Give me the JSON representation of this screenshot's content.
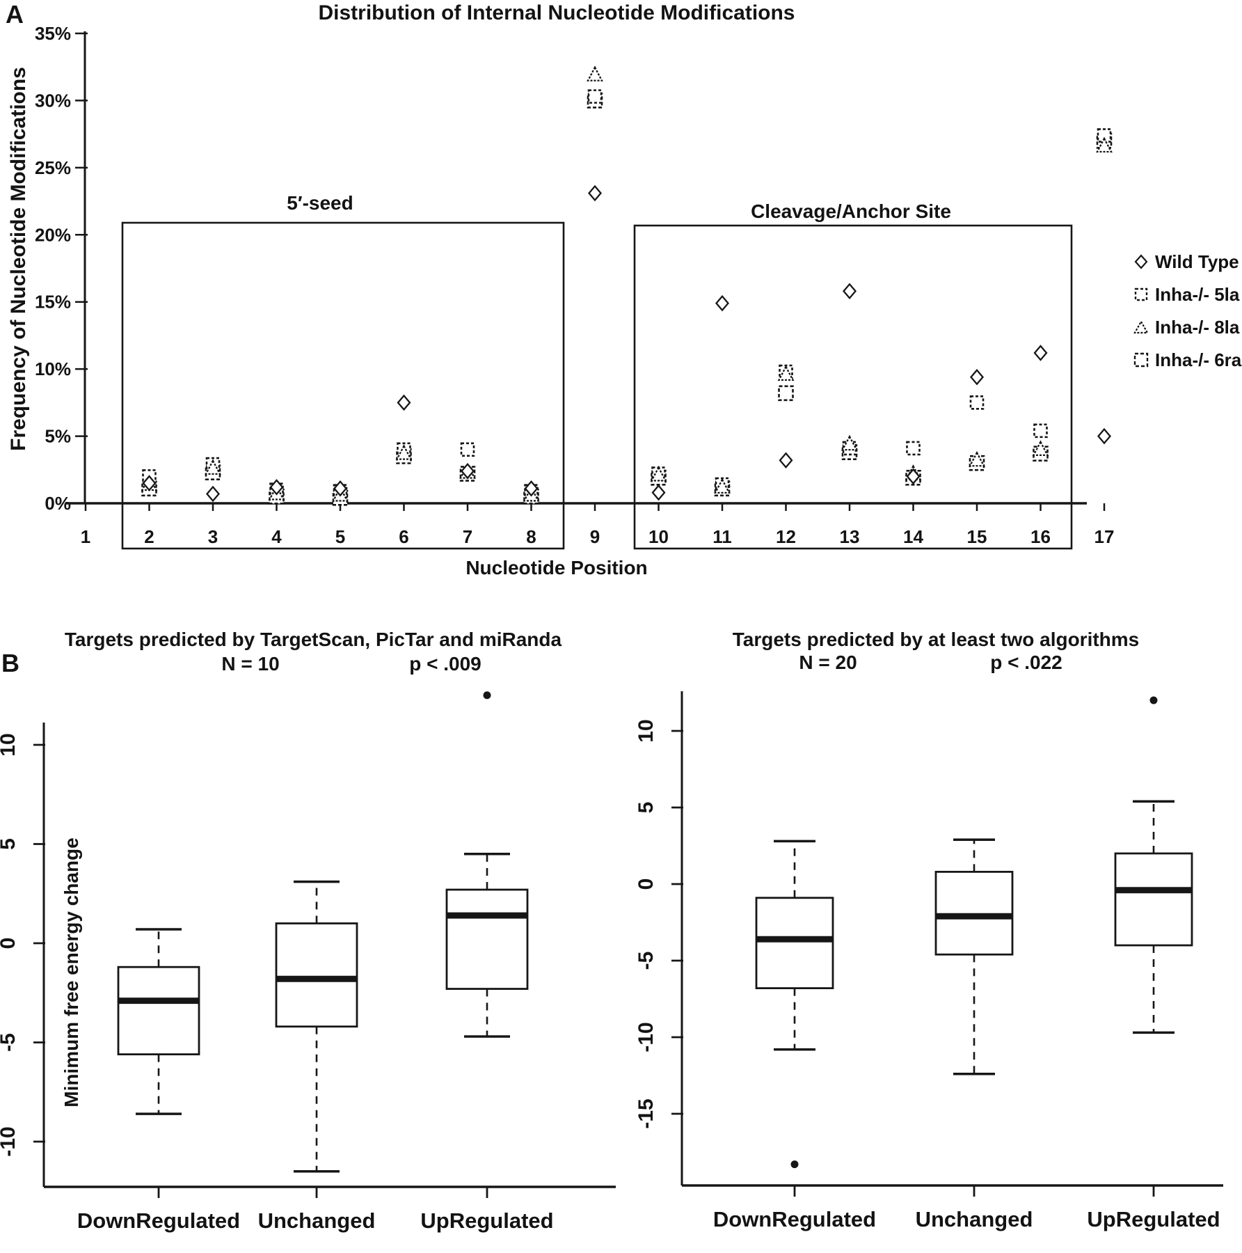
{
  "panels": {
    "a_label": "A",
    "b_label": "B"
  },
  "chart_data": [
    {
      "type": "scatter",
      "panel": "A",
      "title": "Distribution of Internal Nucleotide Modifications",
      "xlabel": "Nucleotide Position",
      "ylabel": "Frequency of Nucleotide Modifications",
      "x_ticks": [
        1,
        2,
        3,
        4,
        5,
        6,
        7,
        8,
        9,
        10,
        11,
        12,
        13,
        14,
        15,
        16,
        17
      ],
      "y_ticks_percent": [
        0,
        5,
        10,
        15,
        20,
        25,
        30,
        35
      ],
      "ylim": [
        0,
        35
      ],
      "grid": false,
      "legend_position": "right",
      "regions": [
        {
          "label": "5′-seed",
          "from": 2,
          "to": 8
        },
        {
          "label": "Cleavage/Anchor Site",
          "from": 10,
          "to": 16
        }
      ],
      "series": [
        {
          "name": "Wild Type",
          "marker": "diamond",
          "points": [
            [
              2,
              1.5
            ],
            [
              3,
              0.7
            ],
            [
              4,
              1.2
            ],
            [
              5,
              1.1
            ],
            [
              6,
              7.5
            ],
            [
              7,
              2.4
            ],
            [
              8,
              1.1
            ],
            [
              9,
              23.1
            ],
            [
              10,
              0.8
            ],
            [
              11,
              14.9
            ],
            [
              12,
              3.2
            ],
            [
              13,
              15.8
            ],
            [
              14,
              2.0
            ],
            [
              15,
              9.4
            ],
            [
              16,
              11.2
            ],
            [
              17,
              5.0
            ]
          ]
        },
        {
          "name": "Inha-/- 5la",
          "marker": "square-small",
          "points": [
            [
              2,
              2.0
            ],
            [
              3,
              2.9
            ],
            [
              4,
              1.0
            ],
            [
              5,
              0.9
            ],
            [
              6,
              4.0
            ],
            [
              7,
              4.0
            ],
            [
              8,
              0.9
            ],
            [
              9,
              30.3
            ],
            [
              10,
              2.2
            ],
            [
              11,
              1.4
            ],
            [
              12,
              9.8
            ],
            [
              13,
              4.1
            ],
            [
              14,
              4.1
            ],
            [
              15,
              7.5
            ],
            [
              16,
              5.4
            ],
            [
              17,
              27.4
            ]
          ]
        },
        {
          "name": "Inha-/- 8la",
          "marker": "triangle",
          "points": [
            [
              2,
              1.4
            ],
            [
              3,
              2.6
            ],
            [
              4,
              0.7
            ],
            [
              5,
              0.6
            ],
            [
              6,
              3.7
            ],
            [
              7,
              2.3
            ],
            [
              8,
              0.6
            ],
            [
              9,
              31.9
            ],
            [
              10,
              2.1
            ],
            [
              11,
              1.2
            ],
            [
              12,
              9.6
            ],
            [
              13,
              4.4
            ],
            [
              14,
              2.2
            ],
            [
              15,
              3.2
            ],
            [
              16,
              4.0
            ],
            [
              17,
              26.6
            ]
          ]
        },
        {
          "name": "Inha-/- 6ra",
          "marker": "square-large",
          "points": [
            [
              2,
              1.1
            ],
            [
              3,
              2.3
            ],
            [
              4,
              0.5
            ],
            [
              5,
              0.4
            ],
            [
              6,
              3.5
            ],
            [
              7,
              2.2
            ],
            [
              8,
              0.5
            ],
            [
              9,
              30.0
            ],
            [
              10,
              1.9
            ],
            [
              11,
              1.1
            ],
            [
              12,
              8.2
            ],
            [
              13,
              3.8
            ],
            [
              14,
              1.9
            ],
            [
              15,
              3.0
            ],
            [
              16,
              3.7
            ],
            [
              17,
              27.0
            ]
          ]
        }
      ]
    },
    {
      "type": "boxplot",
      "panel": "B-left",
      "title": "Targets predicted by TargetScan, PicTar and miRanda",
      "n_label": "N = 10",
      "p_label": "p < .009",
      "ylabel": "Minimum free energy change",
      "y_ticks": [
        10,
        5,
        0,
        -5,
        -10
      ],
      "ylim": [
        -12.5,
        12.5
      ],
      "categories": [
        "DownRegulated",
        "Unchanged",
        "UpRegulated"
      ],
      "boxes": [
        {
          "whisker_low": -8.6,
          "q1": -5.6,
          "median": -2.9,
          "q3": -1.2,
          "whisker_high": 0.7,
          "outliers": []
        },
        {
          "whisker_low": -11.5,
          "q1": -4.2,
          "median": -1.8,
          "q3": 1.0,
          "whisker_high": 3.1,
          "outliers": []
        },
        {
          "whisker_low": -4.7,
          "q1": -2.3,
          "median": 1.4,
          "q3": 2.7,
          "whisker_high": 4.5,
          "outliers": [
            12.5
          ]
        }
      ]
    },
    {
      "type": "boxplot",
      "panel": "B-right",
      "title": "Targets predicted by at least two algorithms",
      "n_label": "N = 20",
      "p_label": "p < .022",
      "ylabel": "",
      "y_ticks": [
        10,
        5,
        0,
        -5,
        -10,
        -15
      ],
      "ylim": [
        -19.5,
        12.5
      ],
      "categories": [
        "DownRegulated",
        "Unchanged",
        "UpRegulated"
      ],
      "boxes": [
        {
          "whisker_low": -10.8,
          "q1": -6.8,
          "median": -3.6,
          "q3": -0.9,
          "whisker_high": 2.8,
          "outliers": [
            -18.3
          ]
        },
        {
          "whisker_low": -12.4,
          "q1": -4.6,
          "median": -2.1,
          "q3": 0.8,
          "whisker_high": 2.9,
          "outliers": []
        },
        {
          "whisker_low": -9.7,
          "q1": -4.0,
          "median": -0.4,
          "q3": 2.0,
          "whisker_high": 5.4,
          "outliers": [
            12.0
          ]
        }
      ]
    }
  ],
  "colors": {
    "ink": "#161616",
    "background": "#ffffff"
  }
}
